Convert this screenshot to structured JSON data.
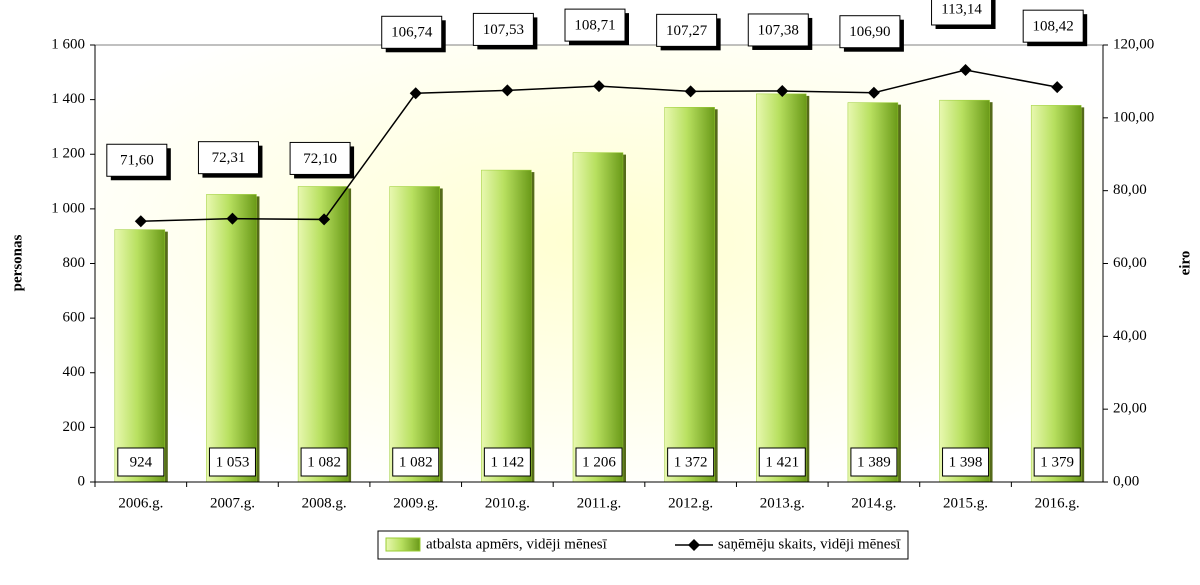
{
  "chart_data": {
    "type": "bar_line",
    "ylabel": "personas",
    "y2label": "eiro",
    "categories": [
      "2006.g.",
      "2007.g.",
      "2008.g.",
      "2009.g.",
      "2010.g.",
      "2011.g.",
      "2012.g.",
      "2013.g.",
      "2014.g.",
      "2015.g.",
      "2016.g."
    ],
    "series": [
      {
        "name": "atbalsta apmērs, vidēji mēnesī",
        "type": "bar",
        "color": "#99cc33",
        "values": [
          924,
          1053,
          1082,
          1082,
          1142,
          1206,
          1372,
          1421,
          1389,
          1398,
          1379
        ],
        "value_labels": [
          "924",
          "1 053",
          "1 082",
          "1 082",
          "1 142",
          "1 206",
          "1 372",
          "1 421",
          "1 389",
          "1 398",
          "1 379"
        ]
      },
      {
        "name": "saņēmēju skaits, vidēji mēnesī",
        "type": "line",
        "axis": "y2",
        "color": "#000000",
        "values": [
          71.6,
          72.31,
          72.1,
          106.74,
          107.53,
          108.71,
          107.27,
          107.38,
          106.9,
          113.14,
          108.42
        ],
        "value_labels": [
          "71,60",
          "72,31",
          "72,10",
          "106,74",
          "107,53",
          "108,71",
          "107,27",
          "107,38",
          "106,90",
          "113,14",
          "108,42"
        ]
      }
    ],
    "ylim": [
      0,
      1600
    ],
    "yticks": [
      0,
      200,
      400,
      600,
      800,
      {
        "value": 1000,
        "label": "1 000"
      },
      {
        "value": 1200,
        "label": "1 200"
      },
      {
        "value": 1400,
        "label": "1 400"
      },
      {
        "value": 1600,
        "label": "1 600"
      }
    ],
    "y2lim": [
      0,
      120
    ],
    "y2ticks": [
      {
        "value": 0,
        "label": "0,00"
      },
      {
        "value": 20,
        "label": "20,00"
      },
      {
        "value": 40,
        "label": "40,00"
      },
      {
        "value": 60,
        "label": "60,00"
      },
      {
        "value": 80,
        "label": "80,00"
      },
      {
        "value": 100,
        "label": "100,00"
      },
      {
        "value": 120,
        "label": "120,00"
      }
    ],
    "grid": true,
    "legend": "bottom"
  }
}
